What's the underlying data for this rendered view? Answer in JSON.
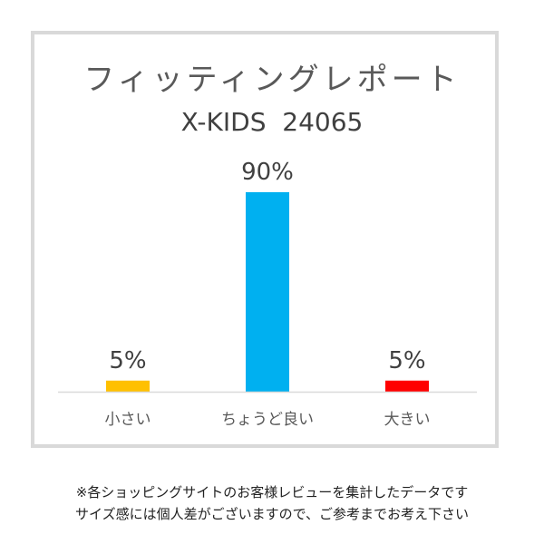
{
  "chart_data": {
    "type": "bar",
    "title": "フィッティングレポート",
    "subtitle": "X-KIDS  24065",
    "categories": [
      "小さい",
      "ちょうど良い",
      "大きい"
    ],
    "values": [
      5,
      90,
      5
    ],
    "value_labels": [
      "5%",
      "90%",
      "5%"
    ],
    "colors": [
      "#FFC000",
      "#00B0F0",
      "#FF0000"
    ],
    "ylim": [
      0,
      100
    ],
    "grid": false,
    "legend": "none"
  },
  "footnotes": [
    "※各ショッピングサイトのお客様レビューを集計したデータです",
    "サイズ感には個人差がございますので、ご参考までお考え下さい"
  ]
}
